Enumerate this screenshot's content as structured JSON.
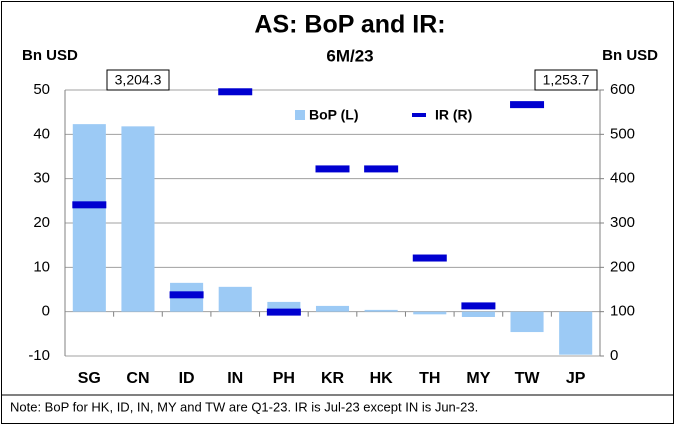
{
  "chart_data": {
    "type": "bar_dash",
    "title": "AS: BoP and IR:",
    "subtitle": "6M/23",
    "y_label": "Bn USD",
    "y2_label": "Bn USD",
    "categories": [
      "SG",
      "CN",
      "ID",
      "IN",
      "PH",
      "KR",
      "HK",
      "TH",
      "MY",
      "TW",
      "JP"
    ],
    "series": [
      {
        "name": "BoP (L)",
        "color": "#9ccaf5",
        "values": [
          42.3,
          41.8,
          6.5,
          5.6,
          2.2,
          1.3,
          0.4,
          -0.6,
          -1.2,
          -4.6,
          -9.7
        ]
      },
      {
        "name": "IR (R)",
        "color": "#0000d0",
        "axis": "y2",
        "values": [
          341,
          3204.3,
          138,
          596,
          99,
          422,
          422,
          221,
          113,
          567,
          1253.7
        ],
        "value_labels": [
          null,
          "3,204.3",
          null,
          null,
          null,
          null,
          null,
          null,
          null,
          null,
          "1,253.7"
        ]
      }
    ],
    "ylim": [
      -10,
      50
    ],
    "yticks": [
      -10,
      0,
      10,
      20,
      30,
      40,
      50
    ],
    "y2lim": [
      0,
      600
    ],
    "y2ticks": [
      0,
      100,
      200,
      300,
      400,
      500,
      600
    ],
    "grid": true,
    "legend": "top",
    "note": "Note: BoP for HK, ID, IN, MY and TW are Q1-23. IR is Jul-23 except IN is Jun-23."
  }
}
